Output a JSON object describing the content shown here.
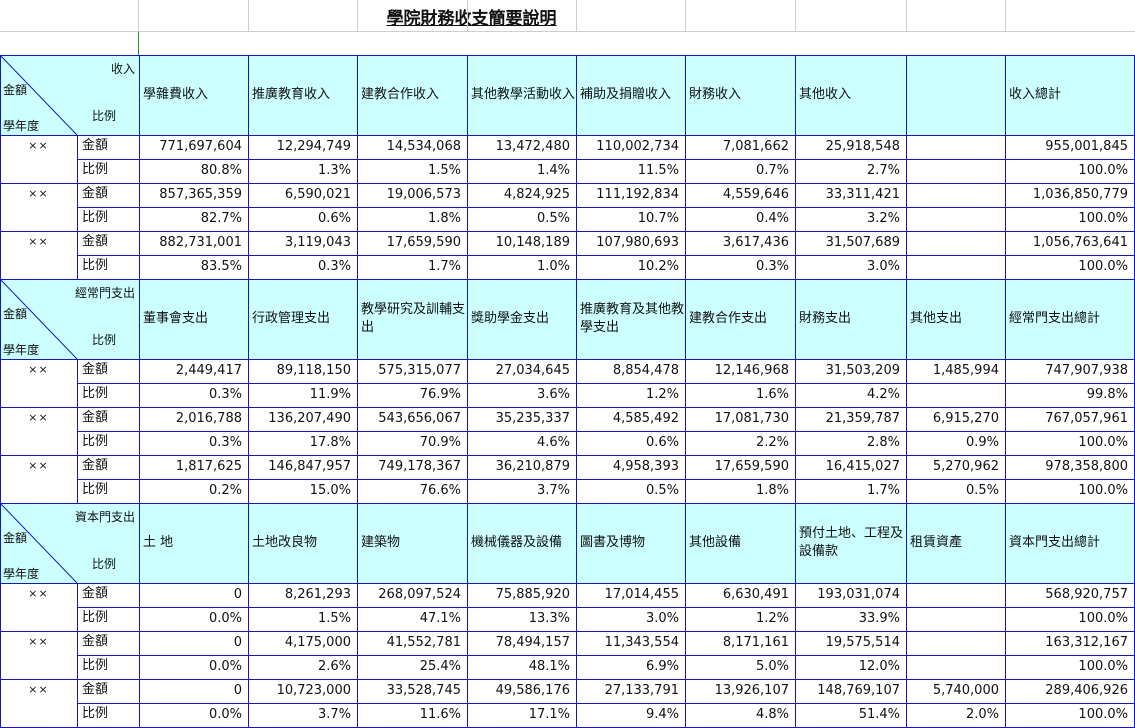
{
  "title": "學院財務收支簡要說明",
  "labels": {
    "amount": "金額",
    "ratio": "比例",
    "year": "學年度"
  },
  "sections": [
    {
      "corner": "收入",
      "headers": [
        "學雜費收入",
        "推廣教育收入",
        "建教合作收入",
        "其他教學活動收入",
        "補助及捐贈收入",
        "財務收入",
        "其他收入",
        "",
        "收入總計"
      ],
      "rows": [
        {
          "year": "××",
          "amount": [
            "771,697,604",
            "12,294,749",
            "14,534,068",
            "13,472,480",
            "110,002,734",
            "7,081,662",
            "25,918,548",
            "",
            "955,001,845"
          ],
          "ratio": [
            "80.8%",
            "1.3%",
            "1.5%",
            "1.4%",
            "11.5%",
            "0.7%",
            "2.7%",
            "",
            "100.0%"
          ]
        },
        {
          "year": "××",
          "amount": [
            "857,365,359",
            "6,590,021",
            "19,006,573",
            "4,824,925",
            "111,192,834",
            "4,559,646",
            "33,311,421",
            "",
            "1,036,850,779"
          ],
          "ratio": [
            "82.7%",
            "0.6%",
            "1.8%",
            "0.5%",
            "10.7%",
            "0.4%",
            "3.2%",
            "",
            "100.0%"
          ]
        },
        {
          "year": "××",
          "amount": [
            "882,731,001",
            "3,119,043",
            "17,659,590",
            "10,148,189",
            "107,980,693",
            "3,617,436",
            "31,507,689",
            "",
            "1,056,763,641"
          ],
          "ratio": [
            "83.5%",
            "0.3%",
            "1.7%",
            "1.0%",
            "10.2%",
            "0.3%",
            "3.0%",
            "",
            "100.0%"
          ]
        }
      ]
    },
    {
      "corner": "經常門支出",
      "headers": [
        "董事會支出",
        "行政管理支出",
        "教學研究及訓輔支出",
        "獎助學金支出",
        "推廣教育及其他教學支出",
        "建教合作支出",
        "財務支出",
        "其他支出",
        "經常門支出總計"
      ],
      "rows": [
        {
          "year": "××",
          "amount": [
            "2,449,417",
            "89,118,150",
            "575,315,077",
            "27,034,645",
            "8,854,478",
            "12,146,968",
            "31,503,209",
            "1,485,994",
            "747,907,938"
          ],
          "ratio": [
            "0.3%",
            "11.9%",
            "76.9%",
            "3.6%",
            "1.2%",
            "1.6%",
            "4.2%",
            "",
            "99.8%"
          ]
        },
        {
          "year": "××",
          "amount": [
            "2,016,788",
            "136,207,490",
            "543,656,067",
            "35,235,337",
            "4,585,492",
            "17,081,730",
            "21,359,787",
            "6,915,270",
            "767,057,961"
          ],
          "ratio": [
            "0.3%",
            "17.8%",
            "70.9%",
            "4.6%",
            "0.6%",
            "2.2%",
            "2.8%",
            "0.9%",
            "100.0%"
          ]
        },
        {
          "year": "××",
          "amount": [
            "1,817,625",
            "146,847,957",
            "749,178,367",
            "36,210,879",
            "4,958,393",
            "17,659,590",
            "16,415,027",
            "5,270,962",
            "978,358,800"
          ],
          "ratio": [
            "0.2%",
            "15.0%",
            "76.6%",
            "3.7%",
            "0.5%",
            "1.8%",
            "1.7%",
            "0.5%",
            "100.0%"
          ]
        }
      ]
    },
    {
      "corner": "資本門支出",
      "headers": [
        "土 地",
        "土地改良物",
        "建築物",
        "機械儀器及設備",
        "圖書及博物",
        "其他設備",
        "預付土地、工程及設備款",
        "租賃資產",
        "資本門支出總計"
      ],
      "rows": [
        {
          "year": "××",
          "amount": [
            "0",
            "8,261,293",
            "268,097,524",
            "75,885,920",
            "17,014,455",
            "6,630,491",
            "193,031,074",
            "",
            "568,920,757"
          ],
          "ratio": [
            "0.0%",
            "1.5%",
            "47.1%",
            "13.3%",
            "3.0%",
            "1.2%",
            "33.9%",
            "",
            "100.0%"
          ]
        },
        {
          "year": "××",
          "amount": [
            "0",
            "4,175,000",
            "41,552,781",
            "78,494,157",
            "11,343,554",
            "8,171,161",
            "19,575,514",
            "",
            "163,312,167"
          ],
          "ratio": [
            "0.0%",
            "2.6%",
            "25.4%",
            "48.1%",
            "6.9%",
            "5.0%",
            "12.0%",
            "",
            "100.0%"
          ]
        },
        {
          "year": "××",
          "amount": [
            "0",
            "10,723,000",
            "33,528,745",
            "49,586,176",
            "27,133,791",
            "13,926,107",
            "148,769,107",
            "5,740,000",
            "289,406,926"
          ],
          "ratio": [
            "0.0%",
            "3.7%",
            "11.6%",
            "17.1%",
            "9.4%",
            "4.8%",
            "51.4%",
            "2.0%",
            "100.0%"
          ]
        }
      ]
    }
  ]
}
